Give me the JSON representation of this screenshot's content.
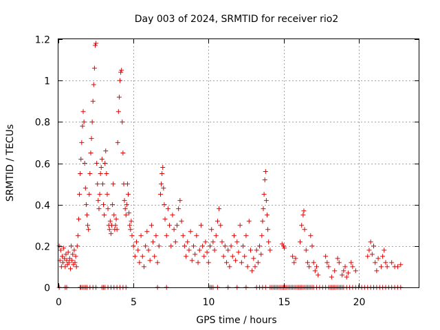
{
  "chart_data": {
    "type": "scatter",
    "title": "Day 003 of 2024, SRMTID for receiver rio2",
    "xlabel": "GPS time / hours",
    "ylabel": "SRMTID / TECUs",
    "xlim": [
      0,
      24
    ],
    "ylim": [
      0,
      1.2
    ],
    "xticks": [
      0,
      5,
      10,
      15,
      20
    ],
    "yticks": [
      0,
      0.2,
      0.4,
      0.6,
      0.8,
      1,
      1.2
    ],
    "xtick_labels": [
      "0",
      "5",
      "10",
      "15",
      "20"
    ],
    "ytick_labels": [
      "0",
      "0.2",
      "0.4",
      "0.6",
      "0.8",
      "1",
      "1.2"
    ],
    "grid": true,
    "marker": "+",
    "series": [
      {
        "name": "rio2",
        "color": "#e00000",
        "points": [
          [
            0.05,
            0.2
          ],
          [
            0.1,
            0.13
          ],
          [
            0.15,
            0.18
          ],
          [
            0.2,
            0.1
          ],
          [
            0.25,
            0.15
          ],
          [
            0.3,
            0.12
          ],
          [
            0.35,
            0.19
          ],
          [
            0.4,
            0.14
          ],
          [
            0.45,
            0.1
          ],
          [
            0.5,
            0.16
          ],
          [
            0.55,
            0.13
          ],
          [
            0.6,
            0.11
          ],
          [
            0.65,
            0.17
          ],
          [
            0.7,
            0.12
          ],
          [
            0.75,
            0.14
          ],
          [
            0.8,
            0.09
          ],
          [
            0.85,
            0.2
          ],
          [
            0.9,
            0.13
          ],
          [
            0.95,
            0.16
          ],
          [
            1.0,
            0.11
          ],
          [
            1.05,
            0.18
          ],
          [
            1.1,
            0.12
          ],
          [
            1.15,
            0.15
          ],
          [
            1.2,
            0.1
          ],
          [
            1.25,
            0.2
          ],
          [
            1.3,
            0.25
          ],
          [
            1.35,
            0.33
          ],
          [
            1.4,
            0.45
          ],
          [
            1.45,
            0.55
          ],
          [
            1.5,
            0.62
          ],
          [
            1.55,
            0.7
          ],
          [
            1.6,
            0.78
          ],
          [
            1.65,
            0.85
          ],
          [
            1.7,
            0.8
          ],
          [
            1.75,
            0.6
          ],
          [
            1.8,
            0.48
          ],
          [
            1.85,
            0.4
          ],
          [
            1.9,
            0.35
          ],
          [
            1.95,
            0.3
          ],
          [
            2.0,
            0.28
          ],
          [
            2.05,
            0.45
          ],
          [
            2.1,
            0.55
          ],
          [
            2.15,
            0.65
          ],
          [
            2.2,
            0.72
          ],
          [
            2.25,
            0.8
          ],
          [
            2.3,
            0.9
          ],
          [
            2.35,
            0.98
          ],
          [
            2.4,
            1.06
          ],
          [
            2.45,
            1.17
          ],
          [
            2.5,
            1.18
          ],
          [
            2.55,
            0.6
          ],
          [
            2.6,
            0.5
          ],
          [
            2.65,
            0.42
          ],
          [
            2.7,
            0.38
          ],
          [
            2.75,
            0.45
          ],
          [
            2.8,
            0.55
          ],
          [
            2.85,
            0.58
          ],
          [
            2.9,
            0.62
          ],
          [
            2.95,
            0.5
          ],
          [
            3.0,
            0.4
          ],
          [
            3.05,
            0.35
          ],
          [
            3.1,
            0.6
          ],
          [
            3.15,
            0.66
          ],
          [
            3.2,
            0.55
          ],
          [
            3.25,
            0.45
          ],
          [
            3.3,
            0.38
          ],
          [
            3.35,
            0.3
          ],
          [
            3.4,
            0.28
          ],
          [
            3.45,
            0.32
          ],
          [
            3.5,
            0.26
          ],
          [
            3.55,
            0.3
          ],
          [
            3.6,
            0.4
          ],
          [
            3.65,
            0.5
          ],
          [
            3.7,
            0.35
          ],
          [
            3.75,
            0.28
          ],
          [
            3.8,
            0.3
          ],
          [
            3.85,
            0.33
          ],
          [
            3.9,
            0.28
          ],
          [
            3.95,
            0.7
          ],
          [
            4.0,
            0.85
          ],
          [
            4.05,
            0.92
          ],
          [
            4.1,
            1.0
          ],
          [
            4.15,
            1.04
          ],
          [
            4.2,
            1.05
          ],
          [
            4.25,
            0.8
          ],
          [
            4.3,
            0.65
          ],
          [
            4.35,
            0.5
          ],
          [
            4.4,
            0.42
          ],
          [
            4.45,
            0.38
          ],
          [
            4.5,
            0.35
          ],
          [
            4.55,
            0.4
          ],
          [
            4.6,
            0.5
          ],
          [
            4.65,
            0.45
          ],
          [
            4.7,
            0.36
          ],
          [
            4.75,
            0.3
          ],
          [
            4.8,
            0.28
          ],
          [
            4.85,
            0.32
          ],
          [
            4.9,
            0.25
          ],
          [
            5.0,
            0.2
          ],
          [
            5.1,
            0.15
          ],
          [
            5.2,
            0.22
          ],
          [
            5.3,
            0.18
          ],
          [
            5.4,
            0.12
          ],
          [
            5.5,
            0.25
          ],
          [
            5.6,
            0.15
          ],
          [
            5.7,
            0.1
          ],
          [
            5.8,
            0.2
          ],
          [
            5.9,
            0.27
          ],
          [
            6.0,
            0.18
          ],
          [
            6.1,
            0.13
          ],
          [
            6.2,
            0.3
          ],
          [
            6.3,
            0.22
          ],
          [
            6.4,
            0.15
          ],
          [
            6.5,
            0.25
          ],
          [
            6.6,
            0.12
          ],
          [
            6.7,
            0.2
          ],
          [
            6.8,
            0.45
          ],
          [
            6.85,
            0.5
          ],
          [
            6.9,
            0.55
          ],
          [
            6.95,
            0.58
          ],
          [
            7.0,
            0.48
          ],
          [
            7.05,
            0.4
          ],
          [
            7.1,
            0.33
          ],
          [
            7.2,
            0.25
          ],
          [
            7.3,
            0.38
          ],
          [
            7.4,
            0.3
          ],
          [
            7.5,
            0.2
          ],
          [
            7.6,
            0.35
          ],
          [
            7.7,
            0.28
          ],
          [
            7.8,
            0.22
          ],
          [
            7.9,
            0.3
          ],
          [
            8.0,
            0.38
          ],
          [
            8.1,
            0.42
          ],
          [
            8.2,
            0.32
          ],
          [
            8.3,
            0.25
          ],
          [
            8.4,
            0.2
          ],
          [
            8.5,
            0.15
          ],
          [
            8.6,
            0.22
          ],
          [
            8.7,
            0.18
          ],
          [
            8.8,
            0.27
          ],
          [
            8.9,
            0.13
          ],
          [
            9.0,
            0.2
          ],
          [
            9.1,
            0.16
          ],
          [
            9.2,
            0.25
          ],
          [
            9.3,
            0.12
          ],
          [
            9.4,
            0.18
          ],
          [
            9.5,
            0.3
          ],
          [
            9.6,
            0.2
          ],
          [
            9.7,
            0.15
          ],
          [
            9.8,
            0.22
          ],
          [
            9.9,
            0.17
          ],
          [
            10.0,
            0.12
          ],
          [
            10.1,
            0.2
          ],
          [
            10.2,
            0.28
          ],
          [
            10.3,
            0.22
          ],
          [
            10.4,
            0.18
          ],
          [
            10.5,
            0.25
          ],
          [
            10.6,
            0.32
          ],
          [
            10.7,
            0.38
          ],
          [
            10.8,
            0.3
          ],
          [
            10.9,
            0.22
          ],
          [
            11.0,
            0.15
          ],
          [
            11.1,
            0.2
          ],
          [
            11.2,
            0.12
          ],
          [
            11.3,
            0.18
          ],
          [
            11.4,
            0.1
          ],
          [
            11.5,
            0.2
          ],
          [
            11.6,
            0.15
          ],
          [
            11.7,
            0.25
          ],
          [
            11.8,
            0.13
          ],
          [
            11.9,
            0.22
          ],
          [
            12.0,
            0.17
          ],
          [
            12.1,
            0.3
          ],
          [
            12.2,
            0.12
          ],
          [
            12.3,
            0.2
          ],
          [
            12.4,
            0.15
          ],
          [
            12.5,
            0.25
          ],
          [
            12.6,
            0.1
          ],
          [
            12.7,
            0.32
          ],
          [
            12.8,
            0.18
          ],
          [
            12.9,
            0.08
          ],
          [
            13.0,
            0.14
          ],
          [
            13.1,
            0.1
          ],
          [
            13.2,
            0.18
          ],
          [
            13.3,
            0.12
          ],
          [
            13.4,
            0.2
          ],
          [
            13.5,
            0.16
          ],
          [
            13.55,
            0.25
          ],
          [
            13.6,
            0.32
          ],
          [
            13.65,
            0.38
          ],
          [
            13.7,
            0.45
          ],
          [
            13.75,
            0.52
          ],
          [
            13.8,
            0.56
          ],
          [
            13.85,
            0.42
          ],
          [
            13.9,
            0.35
          ],
          [
            13.95,
            0.28
          ],
          [
            14.0,
            0.22
          ],
          [
            14.1,
            0.18
          ],
          [
            14.9,
            0.21
          ],
          [
            15.0,
            0.2
          ],
          [
            15.05,
            0.19
          ],
          [
            15.6,
            0.15
          ],
          [
            15.7,
            0.12
          ],
          [
            15.8,
            0.14
          ],
          [
            16.1,
            0.22
          ],
          [
            16.2,
            0.3
          ],
          [
            16.3,
            0.35
          ],
          [
            16.35,
            0.37
          ],
          [
            16.4,
            0.28
          ],
          [
            16.5,
            0.18
          ],
          [
            16.6,
            0.12
          ],
          [
            16.7,
            0.1
          ],
          [
            16.8,
            0.25
          ],
          [
            16.9,
            0.2
          ],
          [
            17.0,
            0.12
          ],
          [
            17.1,
            0.08
          ],
          [
            17.2,
            0.1
          ],
          [
            17.3,
            0.06
          ],
          [
            17.8,
            0.15
          ],
          [
            17.9,
            0.12
          ],
          [
            18.0,
            0.1
          ],
          [
            18.2,
            0.05
          ],
          [
            18.4,
            0.08
          ],
          [
            18.6,
            0.14
          ],
          [
            18.7,
            0.12
          ],
          [
            18.9,
            0.06
          ],
          [
            19.0,
            0.08
          ],
          [
            19.1,
            0.1
          ],
          [
            19.2,
            0.05
          ],
          [
            19.3,
            0.07
          ],
          [
            19.5,
            0.12
          ],
          [
            19.6,
            0.1
          ],
          [
            19.8,
            0.08
          ],
          [
            20.6,
            0.15
          ],
          [
            20.7,
            0.18
          ],
          [
            20.8,
            0.22
          ],
          [
            20.9,
            0.16
          ],
          [
            21.0,
            0.2
          ],
          [
            21.1,
            0.12
          ],
          [
            21.2,
            0.08
          ],
          [
            21.3,
            0.14
          ],
          [
            21.5,
            0.1
          ],
          [
            21.6,
            0.15
          ],
          [
            21.7,
            0.18
          ],
          [
            21.8,
            0.12
          ],
          [
            21.9,
            0.1
          ],
          [
            22.2,
            0.12
          ],
          [
            22.4,
            0.1
          ],
          [
            22.6,
            0.1
          ],
          [
            22.8,
            0.11
          ]
        ],
        "zero_points": [
          0.05,
          0.45,
          0.55,
          1.45,
          1.5,
          1.6,
          1.7,
          1.8,
          1.9,
          2.1,
          2.3,
          2.5,
          2.9,
          3.0,
          3.1,
          3.3,
          3.5,
          3.7,
          3.9,
          4.1,
          4.3,
          4.5,
          6.6,
          7.2,
          10.1,
          10.2,
          10.3,
          10.6,
          11.3,
          11.9,
          12.5,
          13.2,
          13.4,
          13.6,
          13.8,
          14.1,
          14.2,
          14.3,
          14.4,
          14.5,
          14.6,
          14.7,
          14.8,
          14.9,
          15.0,
          15.1,
          15.2,
          15.3,
          15.4,
          15.5,
          15.6,
          15.7,
          15.8,
          15.9,
          16.0,
          16.1,
          16.2,
          16.3,
          16.4,
          16.5,
          16.6,
          16.7,
          16.8,
          16.9,
          17.0,
          17.2,
          17.4,
          17.6,
          17.8,
          18.0,
          18.1,
          18.2,
          18.3,
          18.4,
          18.5,
          18.6,
          18.7,
          18.8,
          18.9,
          19.0,
          19.2,
          19.4,
          19.6,
          19.8,
          20.0,
          20.2,
          20.4,
          20.6,
          20.8,
          21.0,
          21.2,
          21.4,
          21.6,
          21.8,
          22.0,
          22.2,
          22.4,
          22.6,
          22.8
        ]
      }
    ]
  }
}
